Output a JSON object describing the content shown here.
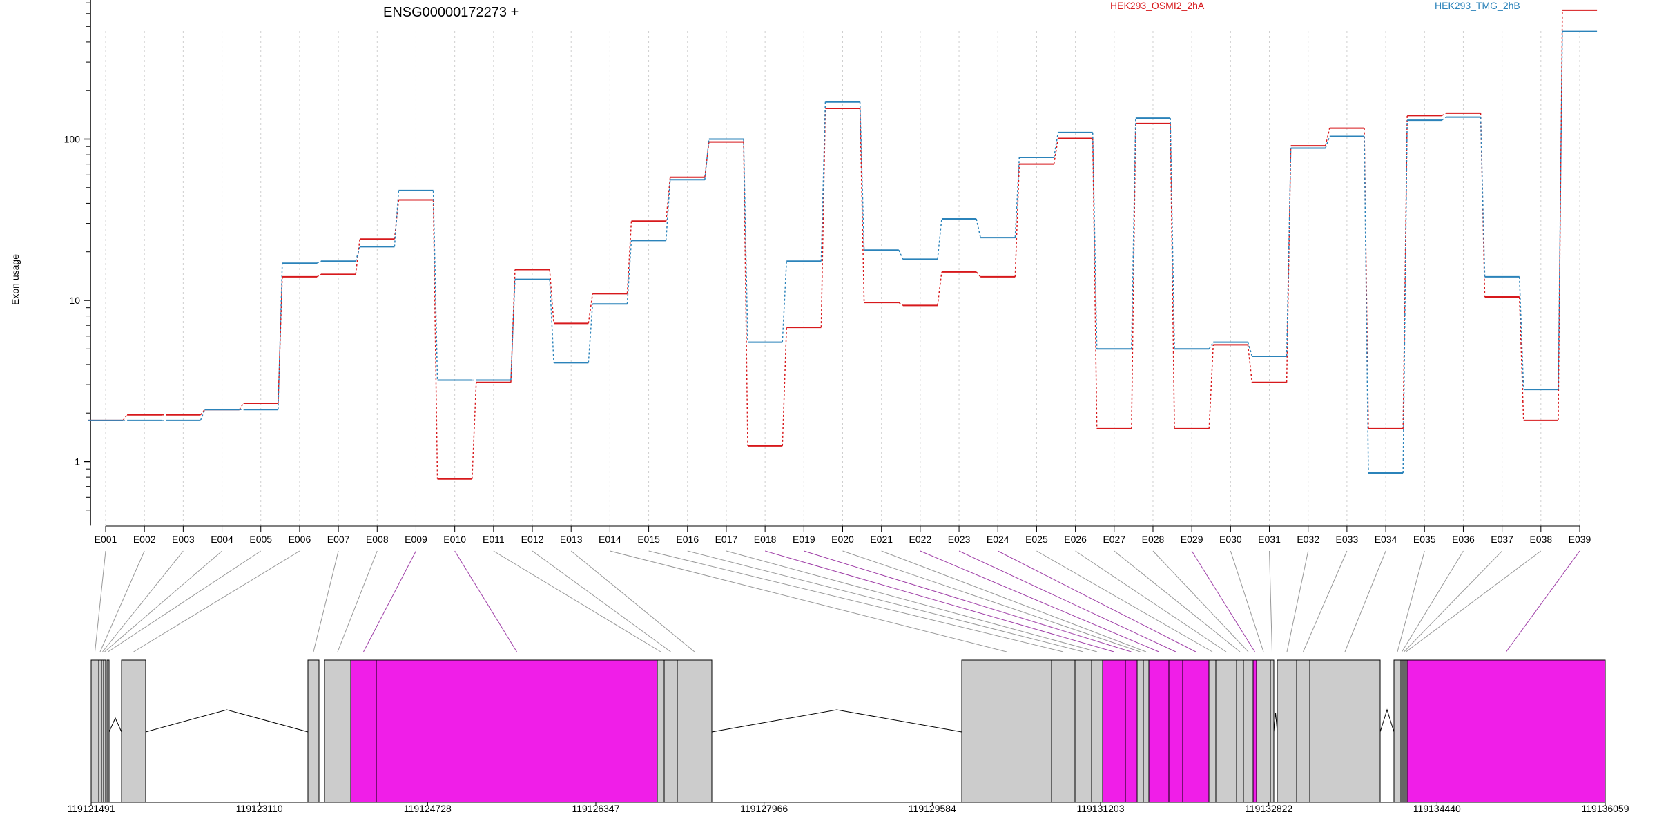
{
  "chart_data": {
    "type": "line",
    "title": "ENSG00000172273 +",
    "xlabel": "",
    "ylabel": "Exon usage",
    "yscale": "log",
    "ylim": [
      0.4,
      750
    ],
    "yticks": [
      1,
      10,
      100
    ],
    "ytick_labels": [
      "1",
      "10",
      "100"
    ],
    "grid": "vertical dotted lines at each exon",
    "legend_position": "top-right",
    "categories": [
      "E001",
      "E002",
      "E003",
      "E004",
      "E005",
      "E006",
      "E007",
      "E008",
      "E009",
      "E010",
      "E011",
      "E012",
      "E013",
      "E014",
      "E015",
      "E016",
      "E017",
      "E018",
      "E019",
      "E020",
      "E021",
      "E022",
      "E023",
      "E024",
      "E025",
      "E026",
      "E027",
      "E028",
      "E029",
      "E030",
      "E031",
      "E032",
      "E033",
      "E034",
      "E035",
      "E036",
      "E037",
      "E038",
      "E039"
    ],
    "series": [
      {
        "name": "HEK293_OSMI2_2hA",
        "color": "#d7191c",
        "values": [
          1.8,
          1.95,
          1.95,
          2.1,
          2.3,
          14,
          14.5,
          24,
          42,
          0.78,
          3.1,
          15.5,
          7.2,
          11,
          31,
          58,
          96,
          1.25,
          6.8,
          155,
          9.7,
          9.3,
          15,
          14,
          70,
          101,
          1.6,
          125,
          1.6,
          5.3,
          3.1,
          91,
          117,
          1.6,
          140,
          145,
          10.5,
          1.8,
          630
        ]
      },
      {
        "name": "HEK293_TMG_2hB",
        "color": "#2b83ba",
        "values": [
          1.8,
          1.8,
          1.8,
          2.1,
          2.1,
          17,
          17.5,
          21.5,
          48,
          3.2,
          3.2,
          13.5,
          4.1,
          9.5,
          23.5,
          56,
          100,
          5.5,
          17.5,
          170,
          20.5,
          18,
          32,
          24.5,
          77,
          110,
          5,
          135,
          5,
          5.5,
          4.5,
          88,
          104,
          0.85,
          131,
          137,
          14,
          2.8,
          465
        ]
      }
    ],
    "track_ticks": [
      "119121491",
      "119123110",
      "119124728",
      "119126347",
      "119127966",
      "119129584",
      "119131203",
      "119132822",
      "119134440",
      "119136059"
    ],
    "track_exon_highlight": [
      false,
      false,
      false,
      false,
      false,
      false,
      false,
      false,
      true,
      true,
      false,
      false,
      false,
      false,
      false,
      false,
      false,
      true,
      true,
      false,
      false,
      true,
      true,
      true,
      false,
      false,
      false,
      false,
      true,
      false,
      false,
      false,
      false,
      false,
      false,
      false,
      false,
      false,
      true
    ],
    "colors": {
      "highlight": "#f01ee8",
      "exon": "#cccccc",
      "dim_line": "#999999",
      "highlight_line": "#a040a8"
    }
  }
}
